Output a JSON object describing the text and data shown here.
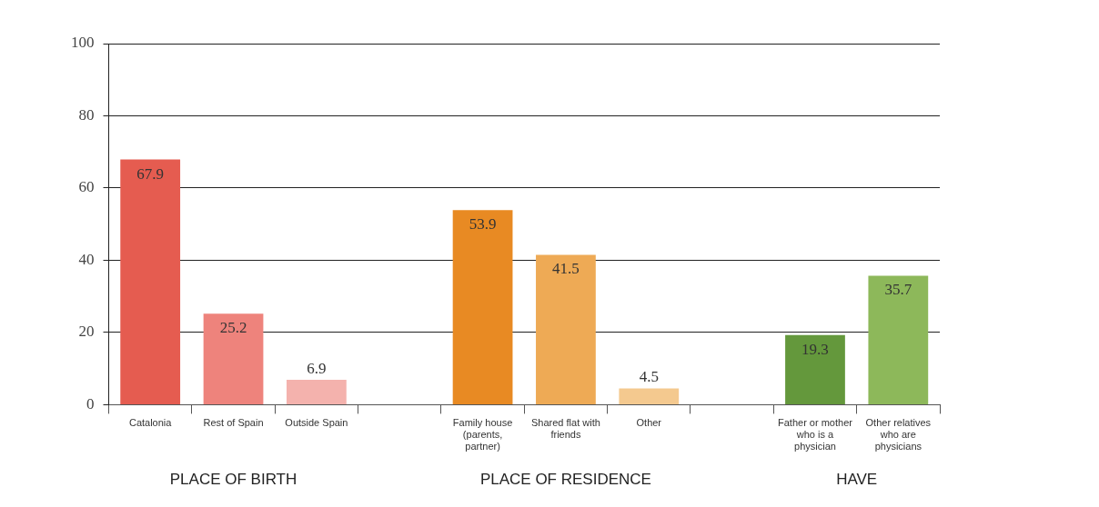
{
  "chart_data": {
    "type": "bar",
    "categories": [
      "Catalonia",
      "Rest of Spain",
      "Outside Spain",
      null,
      "Family house (parents, partner)",
      "Shared flat with friends",
      "Other",
      null,
      "Father or mother who is a physician",
      "Other relatives who are physicians"
    ],
    "values": [
      67.9,
      25.2,
      6.9,
      null,
      53.9,
      41.5,
      4.5,
      null,
      19.3,
      35.7
    ],
    "colors": [
      "#e55c50",
      "#ee837c",
      "#f4b2ad",
      null,
      "#e88a23",
      "#eeaa55",
      "#f4c98f",
      null,
      "#64983c",
      "#8db85a"
    ],
    "ylim": [
      0,
      100
    ],
    "yticks": [
      0,
      20,
      40,
      60,
      80,
      100
    ],
    "grid": "y",
    "data_labels": true,
    "annotations": [
      "PLACE OF BIRTH",
      "PLACE OF RESIDENCE",
      "HAVE"
    ]
  }
}
